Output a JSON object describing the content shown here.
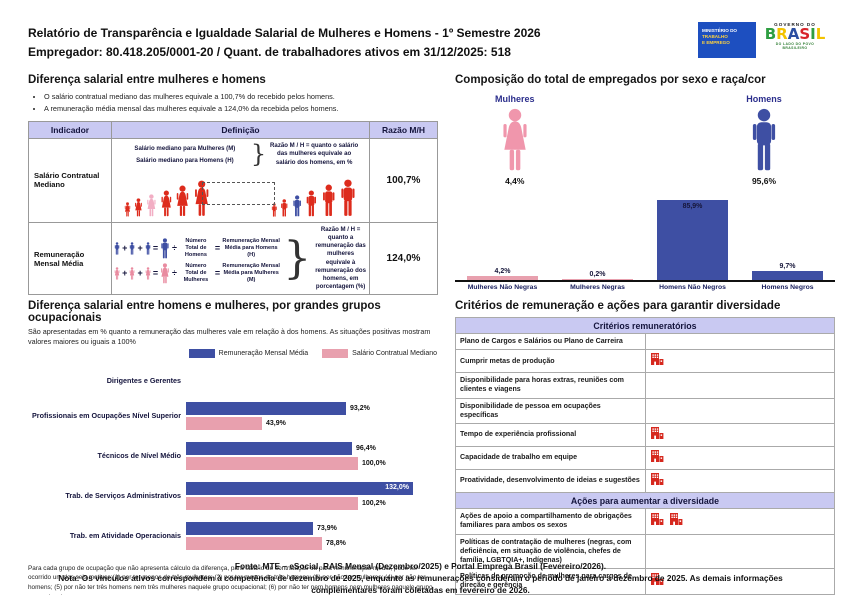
{
  "header": {
    "title": "Relatório de Transparência e Igualdade Salarial de Mulheres e Homens - 1º Semestre 2026",
    "subtitle": "Empregador: 80.418.205/0001-20 / Quant. de trabalhadores ativos em 31/12/2025: 518",
    "ministry_logo": {
      "line1": "MINISTÉRIO DO",
      "line2": "TRABALHO",
      "line3": "E EMPREGO"
    },
    "gov_logo": {
      "top": "GOVERNO DO",
      "brand": "BRASIL",
      "tagline": "DO LADO DO POVO BRASILEIRO"
    }
  },
  "salary_gap": {
    "heading": "Diferença salarial entre mulheres e homens",
    "bullets": [
      "O salário contratual mediano das mulheres equivale a 100,7% do recebido pelos homens.",
      "A remuneração média mensal das mulheres equivale a 124,0% da recebida pelos homens."
    ],
    "table": {
      "headers": [
        "Indicador",
        "Definição",
        "Razão M/H"
      ],
      "row1": {
        "indicator": "Salário Contratual Mediano",
        "def_line1": "Salário mediano para Mulheres (M)",
        "def_line2": "Salário mediano para Homens (H)",
        "note": "Razão M / H = quanto o salário das mulheres equivale ao salário dos homens, em %",
        "ratio": "100,7%"
      },
      "row2": {
        "indicator": "Remuneração Mensal Média",
        "ops": {
          "plus": "+",
          "equals": "=",
          "divide": "÷"
        },
        "men_divisor": "Número Total de Homens",
        "men_result": "Remuneração Mensal Média para Homens (H)",
        "women_divisor": "Número Total de Mulheres",
        "women_result": "Remuneração Mensal Média para Mulheres (M)",
        "note": "Razão M / H = quanto a remuneração das mulheres equivale à remuneração dos homens, em porcentagem (%)",
        "ratio": "124,0%"
      }
    }
  },
  "composition": {
    "heading": "Composição do total de empregados por sexo e raça/cor",
    "female_label": "Mulheres",
    "female_pct": "4,4%",
    "male_label": "Homens",
    "male_pct": "95,6%"
  },
  "occupational": {
    "heading": "Diferença salarial entre homens e mulheres, por grandes grupos ocupacionais",
    "subtext": "São apresentadas em % quanto a remuneração das mulheres vale em relação à dos homens. As situações positivas mostram valores maiores ou iguais a 100%",
    "footnote": "Para cada grupo de ocupação que não apresenta cálculo da diferença, para salário de contratação ou para remuneração média, pode ter ocorrido um dos seis motivos:(1) por ter menos de três mulheres; (2) por ter menos de três homens; (3) por não ter mulheres; (4) por não ter homens; (5) por não ter três homens nem três mulheres naquele grupo ocupacional; (6) por não ter nem homens nem mulheres naquele grupo ocupacional."
  },
  "criteria": {
    "heading": "Critérios de remuneração e ações para garantir diversidade",
    "section1_title": "Critérios remuneratórios",
    "section1_rows": [
      {
        "label": "Plano de Cargos e Salários ou Plano de Carreira",
        "icons": 0
      },
      {
        "label": "Cumprir metas de produção",
        "icons": 1
      },
      {
        "label": "Disponibilidade para horas extras, reuniões com clientes e viagens",
        "icons": 0
      },
      {
        "label": "Disponibilidade de pessoa em ocupações específicas",
        "icons": 0
      },
      {
        "label": "Tempo de experiência profissional",
        "icons": 1
      },
      {
        "label": "Capacidade de trabalho em equipe",
        "icons": 1
      },
      {
        "label": "Proatividade, desenvolvimento de ideias e sugestões",
        "icons": 1
      }
    ],
    "section2_title": "Ações para aumentar a diversidade",
    "section2_rows": [
      {
        "label": "Ações de apoio a compartilhamento de obrigações familiares para ambos os sexos",
        "icons": 2
      },
      {
        "label": "Políticas de contratação de mulheres (negras, com deficiência, em situação de violência, chefes de família, LGBTQIA+, Indígenas)",
        "icons": 0
      },
      {
        "label": "Políticas de promoção de mulheres para cargos de direção e gerência",
        "icons": 1
      }
    ]
  },
  "footer": {
    "fonte": "Fonte: MTE – eSocial, RAIS Mensal (Dezembro/2025) e Portal Emprega Brasil (Fevereiro/2026).",
    "nota": "Nota: Os vínculos ativos correspondem à competência de dezembro de 2025, enquanto as remunerações consideram o período de janeiro a dezembro de 2025. As demais informações complementares foram coletadas em fevereiro de 2026."
  },
  "colors": {
    "blue": "#3e4fa3",
    "pink": "#e8a0ae",
    "red_figure": "#dd2b1c",
    "pink_figure": "#f2aec4",
    "navy_text": "#2b2e8c",
    "lavender_header": "#c9c9f2",
    "red_icon": "#d6281e"
  },
  "chart_data": [
    {
      "type": "bar",
      "title": "Composição do total de empregados por sexo e raça/cor",
      "categories": [
        "Mulheres Não Negras",
        "Mulheres Negras",
        "Homens Não Negros",
        "Homens Negros"
      ],
      "values": [
        4.2,
        0.2,
        85.9,
        9.7
      ],
      "value_labels": [
        "4,2%",
        "0,2%",
        "85,9%",
        "9,7%"
      ],
      "colors": [
        "#e8a0ae",
        "#e8a0ae",
        "#3e4fa3",
        "#3e4fa3"
      ],
      "ylim": [
        0,
        100
      ],
      "grid": false,
      "legend_position": "none"
    },
    {
      "type": "bar",
      "orientation": "horizontal",
      "title": "Diferença salarial entre homens e mulheres, por grandes grupos ocupacionais",
      "categories": [
        "Dirigentes e Gerentes",
        "Profissionais em Ocupações Nível Superior",
        "Técnicos de Nível Médio",
        "Trab. de Serviços Administrativos",
        "Trab. em Atividade Operacionais"
      ],
      "series": [
        {
          "name": "Remuneração Mensal Média",
          "color": "#3e4fa3",
          "values": [
            null,
            93.2,
            96.4,
            132.0,
            73.9
          ],
          "labels": [
            "",
            "93,2%",
            "96,4%",
            "132,0%",
            "73,9%"
          ]
        },
        {
          "name": "Salário Contratual Mediano",
          "color": "#e8a0ae",
          "values": [
            null,
            43.9,
            100.0,
            100.2,
            78.8
          ],
          "labels": [
            "",
            "43,9%",
            "100,0%",
            "100,2%",
            "78,8%"
          ]
        }
      ],
      "xlim": [
        0,
        140
      ],
      "grid": false,
      "legend_position": "top-right"
    }
  ]
}
